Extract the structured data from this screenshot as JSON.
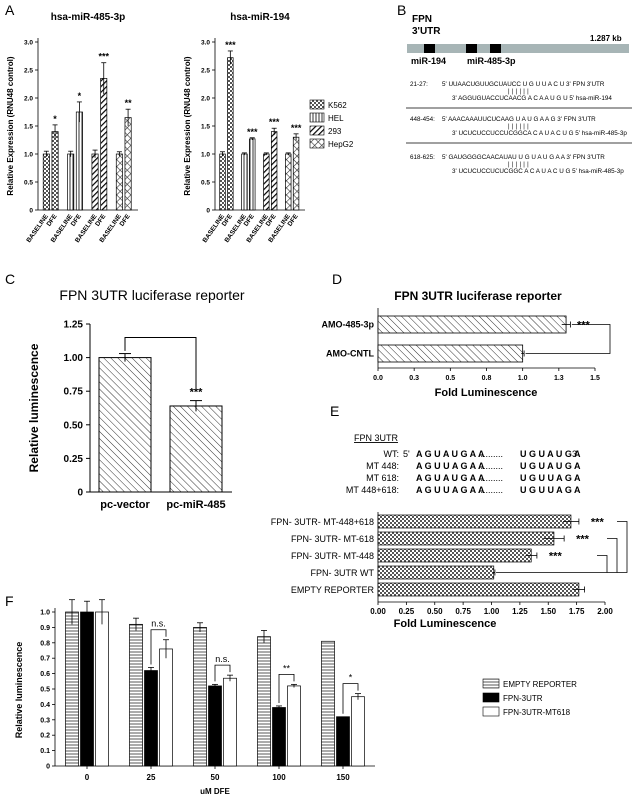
{
  "panels": {
    "A": "A",
    "B": "B",
    "C": "C",
    "D": "D",
    "E": "E",
    "F": "F"
  },
  "legend_a": [
    "K562",
    "HEL",
    "293",
    "HepG2"
  ],
  "chart_data": [
    {
      "id": "A1",
      "type": "bar",
      "title": "hsa-miR-485-3p",
      "ylabel": "Relative Expression (RNU48 control)",
      "ylim": [
        0,
        3.0
      ],
      "yticks": [
        "0",
        "0.5",
        "1.0",
        "1.5",
        "2.0",
        "2.5",
        "3.0"
      ],
      "categories": [
        "BASELINE",
        "DFE",
        "BASELINE",
        "DFE",
        "BASELINE",
        "DFE",
        "BASELINE",
        "DFE"
      ],
      "values": [
        1.0,
        1.4,
        1.0,
        1.75,
        1.0,
        2.35,
        1.0,
        1.65
      ],
      "errors": [
        0.05,
        0.12,
        0.05,
        0.18,
        0.07,
        0.28,
        0.04,
        0.15
      ],
      "series_of_bar": [
        0,
        0,
        1,
        1,
        2,
        2,
        3,
        3
      ],
      "significance": [
        "",
        "*",
        "",
        "*",
        "",
        "***",
        "",
        "**"
      ]
    },
    {
      "id": "A2",
      "type": "bar",
      "title": "hsa-miR-194",
      "ylabel": "Relative Expression (RNU48 control)",
      "ylim": [
        0,
        3.0
      ],
      "yticks": [
        "0",
        "0.5",
        "1.0",
        "1.5",
        "2.0",
        "2.5",
        "3.0"
      ],
      "categories": [
        "BASELINE",
        "DFE",
        "BASELINE",
        "DFE",
        "BASELINE",
        "DFE",
        "BASELINE",
        "DFE"
      ],
      "values": [
        1.0,
        2.72,
        1.0,
        1.27,
        1.0,
        1.4,
        1.0,
        1.3
      ],
      "errors": [
        0.04,
        0.12,
        0.02,
        0.02,
        0.02,
        0.06,
        0.02,
        0.06
      ],
      "series_of_bar": [
        0,
        0,
        1,
        1,
        2,
        2,
        3,
        3
      ],
      "significance": [
        "",
        "***",
        "",
        "***",
        "",
        "***",
        "",
        "***"
      ]
    },
    {
      "id": "C",
      "type": "bar",
      "title": "FPN 3UTR luciferase reporter",
      "ylabel": "Relative luminescence",
      "ylim": [
        0,
        1.25
      ],
      "yticks": [
        "0",
        "0.25",
        "0.50",
        "0.75",
        "1.00",
        "1.25"
      ],
      "categories": [
        "pc-vector",
        "pc-miR-485"
      ],
      "values": [
        1.0,
        0.64
      ],
      "errors": [
        0.03,
        0.04
      ],
      "significance": [
        "",
        "***"
      ]
    },
    {
      "id": "D",
      "type": "bar",
      "orientation": "horizontal",
      "title": "FPN 3UTR luciferase reporter",
      "xlabel": "Fold Luminescence",
      "xlim": [
        0,
        1.5
      ],
      "xticks": [
        "0.0",
        "0.3",
        "0.5",
        "0.8",
        "1.0",
        "1.3",
        "1.5"
      ],
      "categories": [
        "AMO-485-3p",
        "AMO-CNTL"
      ],
      "values": [
        1.3,
        1.0
      ],
      "errors": [
        0.03,
        0.01
      ],
      "significance": "***"
    },
    {
      "id": "E",
      "type": "bar",
      "orientation": "horizontal",
      "xlabel": "Fold Luminescence",
      "xlim": [
        0,
        2.0
      ],
      "xticks": [
        "0.00",
        "0.25",
        "0.50",
        "0.75",
        "1.00",
        "1.25",
        "1.50",
        "1.75",
        "2.00"
      ],
      "categories": [
        "FPN- 3UTR- MT-448+618",
        "FPN- 3UTR- MT-618",
        "FPN- 3UTR- MT-448",
        "FPN- 3UTR WT",
        "EMPTY REPORTER"
      ],
      "values": [
        1.7,
        1.55,
        1.35,
        1.02,
        1.77
      ],
      "errors": [
        0.07,
        0.09,
        0.05,
        0.01,
        0.05
      ],
      "significance": [
        "***",
        "***",
        "***",
        "",
        ""
      ]
    },
    {
      "id": "F",
      "type": "bar",
      "ylabel": "Relative luminescence",
      "xlabel": "uM DFE",
      "ylim": [
        0,
        1.0
      ],
      "yticks": [
        "0",
        "0.1",
        "0.2",
        "0.3",
        "0.4",
        "0.5",
        "0.6",
        "0.7",
        "0.8",
        "0.9",
        "1.0"
      ],
      "categories": [
        "0",
        "25",
        "50",
        "100",
        "150"
      ],
      "series": [
        {
          "name": "EMPTY REPORTER",
          "values": [
            1.0,
            0.92,
            0.9,
            0.84,
            0.81
          ],
          "errors": [
            0.08,
            0.04,
            0.03,
            0.04,
            0.0
          ]
        },
        {
          "name": "FPN-3UTR",
          "values": [
            1.0,
            0.62,
            0.52,
            0.38,
            0.32
          ],
          "errors": [
            0.07,
            0.02,
            0.01,
            0.01,
            0.0
          ]
        },
        {
          "name": "FPN-3UTR-MT618",
          "values": [
            1.0,
            0.76,
            0.57,
            0.52,
            0.45
          ],
          "errors": [
            0.08,
            0.06,
            0.02,
            0.01,
            0.02
          ]
        }
      ],
      "brackets": [
        {
          "group": 1,
          "label": "n.s."
        },
        {
          "group": 2,
          "label": "n.s."
        },
        {
          "group": 3,
          "label": "**"
        },
        {
          "group": 4,
          "label": "*"
        }
      ]
    }
  ],
  "panel_b": {
    "title_line1": "FPN",
    "title_line2": "3'UTR",
    "size": "1.287 kb",
    "labels": [
      "miR-194",
      "miR-485-3p"
    ],
    "alignments": [
      {
        "pos": "21-27:",
        "top": "5'  UUAACUGUUGCUAUCC U G U U A C U  3'  FPN 3'UTR",
        "ticks": "| | | | | |",
        "bottom": "3'    AGGUGUACCUCAACG A C A A U G U 5'  hsa-miR-194"
      },
      {
        "pos": "448-454:",
        "top": "5'  AAACAAAUUCUCAAG U A U G A A G  3'  FPN 3'UTR",
        "ticks": "| | | | | |",
        "bottom": "3'  UCUCUCCUCCUCGGCA C A U A C U G  5'  hsa-miR-485-3p"
      },
      {
        "pos": "618-625:",
        "top": "5'  GAUGGGGCAACAUAU U G U A U G A A  3'  FPN 3'UTR",
        "ticks": "| | | | | |",
        "bottom": "3'  UCUCUCCUCUCGGC  A C A U A C U G  5'  hsa-miR-485-3p"
      }
    ]
  },
  "panel_e_seq": {
    "header": "FPN 3UTR",
    "rows": [
      {
        "label": "WT:",
        "prefix": "5'",
        "seq1": "A G U A U G A A",
        "dots": "..........",
        "seq2": "U G U A U G A",
        "suffix": "3'"
      },
      {
        "label": "MT 448:",
        "prefix": "",
        "seq1": "A G U U A G A A",
        "dots": "..........",
        "seq2": "U G U A U G A",
        "suffix": ""
      },
      {
        "label": "MT 618:",
        "prefix": "",
        "seq1": "A G U A U G A A",
        "dots": "..........",
        "seq2": "U G U U A G A",
        "suffix": ""
      },
      {
        "label": "MT 448+618:",
        "prefix": "",
        "seq1": "A G U U A G A A",
        "dots": "..........",
        "seq2": "U G U U A G A",
        "suffix": ""
      }
    ]
  }
}
